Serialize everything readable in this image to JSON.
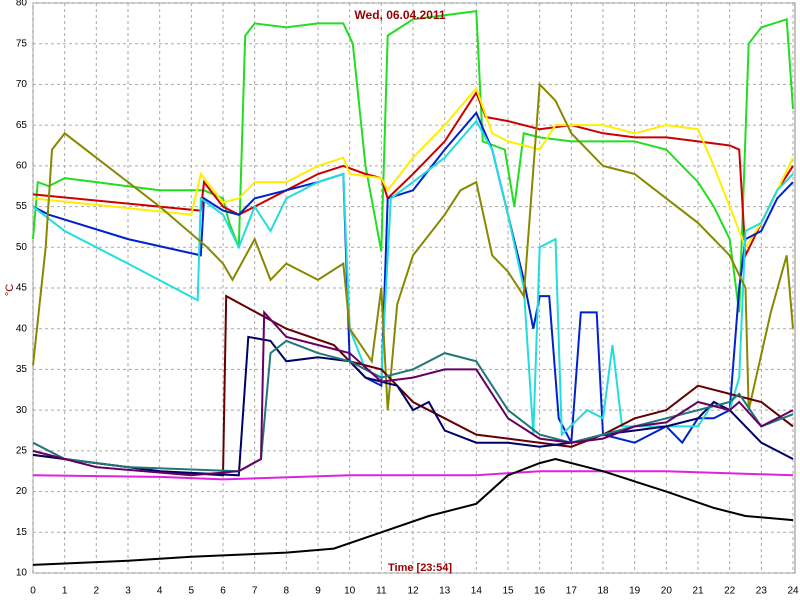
{
  "chart_data": {
    "type": "line",
    "title": "Wed, 06.04.2011",
    "x_label": "Time [23:54]",
    "y_label": "°C",
    "xlim": [
      0,
      24
    ],
    "xticks": [
      0,
      1,
      2,
      3,
      4,
      5,
      6,
      7,
      8,
      9,
      10,
      11,
      12,
      13,
      14,
      15,
      16,
      17,
      18,
      19,
      20,
      21,
      22,
      23,
      24
    ],
    "ylim": [
      10,
      80
    ],
    "yticks": [
      10,
      15,
      20,
      25,
      30,
      35,
      40,
      45,
      50,
      55,
      60,
      65,
      70,
      75,
      80
    ],
    "grid": true,
    "series": [
      {
        "color": "#22dd22",
        "x": [
          0,
          0.15,
          0.5,
          1,
          2,
          3,
          4,
          5,
          5.4,
          6,
          6.2,
          6.5,
          6.7,
          7,
          8,
          9,
          9.8,
          10.1,
          10.5,
          11,
          11.2,
          12,
          13,
          14,
          14.2,
          14.9,
          15.2,
          15.5,
          16,
          17,
          18,
          19,
          20,
          21,
          21.5,
          22,
          22.3,
          22.6,
          23,
          23.8,
          24
        ],
        "values": [
          51,
          58,
          57.5,
          58.5,
          58,
          57.5,
          57,
          57,
          57,
          56,
          53,
          50,
          76,
          77.5,
          77,
          77.5,
          77.5,
          75,
          60,
          49.5,
          76,
          78,
          78.5,
          79,
          63,
          62,
          55,
          64,
          63.5,
          63,
          63,
          63,
          62,
          58,
          55,
          51,
          42,
          75,
          77,
          78,
          67
        ]
      },
      {
        "color": "#cc0000",
        "x": [
          0,
          5.3,
          5.4,
          6,
          6.5,
          7,
          8,
          9,
          9.8,
          10.5,
          11,
          11.2,
          12,
          13,
          14,
          14.3,
          15,
          16,
          17,
          18,
          19,
          20,
          21,
          22,
          22.3,
          22.5,
          23,
          23.5,
          24
        ],
        "values": [
          56.5,
          54.5,
          58,
          55,
          54,
          55,
          57,
          59,
          60,
          59,
          58.5,
          56,
          59,
          63,
          69,
          66,
          65.5,
          64.5,
          65,
          64,
          63.5,
          63.5,
          63,
          62.5,
          62,
          49,
          53,
          57,
          60
        ]
      },
      {
        "color": "#ffee00",
        "x": [
          0,
          5,
          5.3,
          6,
          6.5,
          7,
          8,
          9,
          9.8,
          10,
          11,
          11.2,
          12,
          13,
          14,
          14.5,
          15,
          16,
          16.5,
          18,
          19,
          20,
          21,
          21.5,
          22,
          22.3,
          22.5,
          23,
          23.5,
          24
        ],
        "values": [
          56,
          54,
          59,
          55.5,
          56,
          58,
          58,
          60,
          61,
          59,
          58.5,
          57,
          61,
          65,
          69.5,
          64,
          63,
          62,
          65,
          65,
          64,
          65,
          64.5,
          60,
          55,
          52,
          50,
          53,
          57,
          61
        ]
      },
      {
        "color": "#0022cc",
        "x": [
          0,
          0.5,
          3,
          5.3,
          5.4,
          6,
          6.5,
          7,
          8,
          9,
          9.8,
          10,
          10.5,
          11,
          11.2,
          12,
          13,
          14,
          14.5,
          15,
          15.5,
          15.8,
          16,
          16.3,
          16.6,
          17,
          17.3,
          17.8,
          18,
          19,
          20,
          20.5,
          21,
          21.5,
          22,
          22.3,
          22.5,
          23,
          23.5,
          24
        ],
        "values": [
          55,
          54,
          51,
          49,
          56,
          54.5,
          54,
          56,
          57,
          58,
          59,
          36,
          34,
          33,
          56,
          57,
          62,
          66.5,
          62,
          54,
          46,
          40,
          44,
          44,
          29,
          26,
          42,
          42,
          27,
          26,
          28,
          26,
          29,
          29,
          30,
          45,
          51,
          52,
          56,
          58
        ]
      },
      {
        "color": "#22dddd",
        "x": [
          0,
          1,
          3,
          5.2,
          5.3,
          6,
          6.5,
          7,
          7.5,
          8,
          9,
          9.8,
          10,
          10.5,
          11,
          11.3,
          12,
          13,
          14,
          14.5,
          15,
          15.5,
          15.8,
          16,
          16.5,
          16.7,
          17.5,
          18,
          18.3,
          18.6,
          20,
          21,
          21.5,
          22,
          22.3,
          22.5,
          23,
          23.5,
          24
        ],
        "values": [
          55,
          52,
          48,
          43.5,
          56,
          54,
          50,
          55,
          52,
          56,
          58,
          59,
          40,
          35,
          34,
          56,
          58,
          61,
          65.5,
          62,
          54,
          45,
          27,
          50,
          51,
          27,
          30,
          29,
          38,
          28,
          28,
          28,
          31,
          30,
          34,
          52,
          53,
          57,
          59
        ]
      },
      {
        "color": "#888800",
        "x": [
          0,
          0.4,
          0.6,
          1,
          2,
          3,
          4,
          5.5,
          6,
          6.3,
          7,
          7.5,
          8,
          9,
          9.8,
          10,
          10.7,
          11,
          11.2,
          11.5,
          12,
          13,
          13.5,
          14,
          14.5,
          15,
          15.5,
          16,
          16.5,
          17,
          18,
          19,
          20,
          21,
          22,
          22.5,
          22.6,
          23.3,
          23.8,
          24
        ],
        "values": [
          35.5,
          50,
          62,
          64,
          61,
          58,
          55,
          50,
          48,
          46,
          51,
          46,
          48,
          46,
          48,
          40,
          36,
          45,
          30,
          43,
          49,
          54,
          57,
          58,
          49,
          47,
          44,
          70,
          68,
          64,
          60,
          59,
          56,
          53,
          49,
          45,
          30,
          42,
          49,
          40
        ]
      },
      {
        "color": "#660000",
        "x": [
          0,
          2,
          4,
          6,
          6.1,
          8,
          9.5,
          10,
          11,
          11.5,
          12,
          13,
          14,
          16,
          17,
          18,
          19,
          20,
          21,
          22,
          23,
          24
        ],
        "values": [
          24.5,
          23.5,
          22.5,
          22,
          44,
          40,
          38,
          36,
          35,
          33,
          31,
          29,
          27,
          26,
          25.5,
          27,
          29,
          30,
          33,
          32,
          31,
          28
        ]
      },
      {
        "color": "#000066",
        "x": [
          0,
          2,
          4,
          6.5,
          6.8,
          7.5,
          8,
          9,
          10,
          10.5,
          11.5,
          12,
          12.5,
          13,
          14,
          15,
          16,
          17,
          18,
          19,
          20,
          21,
          21.5,
          22,
          22.5,
          23,
          24
        ],
        "values": [
          24.5,
          23.5,
          22.5,
          22,
          39,
          38.5,
          36,
          36.5,
          36,
          34,
          33,
          30,
          31,
          27.5,
          26,
          26,
          25.5,
          26,
          27,
          27.5,
          28,
          29,
          31,
          30,
          28,
          26,
          24
        ]
      },
      {
        "color": "#227777",
        "x": [
          0,
          1,
          3,
          6.5,
          7.2,
          7.5,
          8,
          9,
          10,
          11,
          12,
          13,
          14,
          15,
          16,
          17,
          18,
          19,
          20,
          21,
          22,
          22.3,
          23,
          24
        ],
        "values": [
          26,
          24,
          23,
          22.5,
          24,
          37,
          38.5,
          37,
          36,
          34,
          35,
          37,
          36,
          30,
          27,
          26,
          27,
          28,
          29,
          30,
          31,
          32,
          28,
          29.5
        ]
      },
      {
        "color": "#660066",
        "x": [
          0,
          2,
          5,
          6.5,
          7.2,
          7.3,
          8,
          9,
          10,
          11,
          12,
          13,
          14,
          15,
          16,
          17,
          18,
          19,
          20,
          21,
          22,
          22.3,
          23,
          24
        ],
        "values": [
          25,
          23,
          22,
          22.5,
          24,
          42,
          39,
          38,
          37,
          33.5,
          34,
          35,
          35,
          29,
          26.5,
          26,
          26.5,
          28,
          28.5,
          31,
          30,
          31,
          28,
          30
        ]
      },
      {
        "color": "#dd22dd",
        "x": [
          0,
          4,
          6,
          10,
          14,
          16,
          20,
          24
        ],
        "values": [
          22,
          21.8,
          21.5,
          22,
          22,
          22.5,
          22.5,
          22
        ]
      },
      {
        "color": "#000000",
        "x": [
          0,
          3,
          5,
          8,
          9.5,
          11,
          12.5,
          14,
          15,
          16,
          16.5,
          18,
          20,
          21.5,
          22.5,
          24
        ],
        "values": [
          11,
          11.5,
          12,
          12.5,
          13,
          15,
          17,
          18.5,
          22,
          23.5,
          24,
          22.5,
          20,
          18,
          17,
          16.5
        ]
      }
    ]
  }
}
